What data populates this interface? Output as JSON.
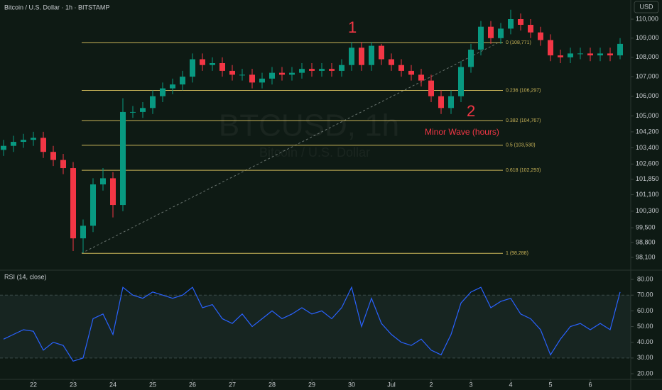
{
  "chart_data": [
    {
      "type": "candlestick",
      "header": "Bitcoin / U.S. Dollar · 1h · BITSTAMP",
      "watermark": "BTCUSD, 1h",
      "watermark_sub": "Bitcoin / U.S. Dollar",
      "currency": "USD",
      "up_color": "#089981",
      "down_color": "#f23645",
      "log_scale": true,
      "open": [
        103300,
        103500,
        103700,
        103800,
        103900,
        103200,
        102800,
        102400,
        99000,
        99600,
        101600,
        101900,
        100600,
        105200,
        105200,
        105400,
        106000,
        106400,
        106600,
        107000,
        107900,
        107600,
        107700,
        107300,
        107100,
        107100,
        106700,
        106900,
        107200,
        107100,
        107200,
        107400,
        107300,
        107400,
        107300,
        107600,
        108500,
        107600,
        108600,
        107900,
        107600,
        107300,
        107100,
        106800,
        106000,
        105400,
        106000,
        107500,
        108400,
        109600,
        109000,
        109500,
        110000,
        109700,
        109300,
        108900,
        108100,
        108000,
        108200,
        108200,
        108100,
        108200,
        108100
      ],
      "high": [
        103800,
        104000,
        104100,
        104200,
        104200,
        103500,
        103100,
        102700,
        99900,
        101900,
        102400,
        102200,
        105900,
        105500,
        105700,
        106300,
        106700,
        106900,
        107300,
        108200,
        108200,
        108000,
        108000,
        107600,
        107400,
        107400,
        107200,
        107500,
        107500,
        107500,
        107700,
        107700,
        107700,
        107700,
        107900,
        108800,
        108800,
        108800,
        108700,
        108200,
        107900,
        107600,
        107400,
        107100,
        106300,
        106300,
        107800,
        108700,
        109900,
        109900,
        109800,
        110500,
        110300,
        110000,
        109600,
        109200,
        108400,
        108500,
        108500,
        108500,
        108500,
        108500,
        109000
      ],
      "low": [
        103000,
        103200,
        103400,
        103500,
        102900,
        102500,
        102100,
        98400,
        98300,
        99300,
        101300,
        100000,
        100300,
        104900,
        104900,
        105100,
        105700,
        106100,
        106300,
        106700,
        107300,
        107300,
        107000,
        106800,
        106800,
        106400,
        106400,
        106600,
        106800,
        106800,
        106900,
        107000,
        107000,
        107000,
        107000,
        107300,
        107300,
        107300,
        107600,
        107300,
        107000,
        106800,
        106500,
        105700,
        105100,
        105100,
        105700,
        107200,
        108100,
        108700,
        108700,
        109200,
        109400,
        109000,
        108600,
        107800,
        107700,
        107700,
        107900,
        107800,
        107800,
        107800,
        107900
      ],
      "close": [
        103500,
        103700,
        103800,
        103900,
        103200,
        102800,
        102400,
        99000,
        99600,
        101600,
        101900,
        100600,
        105200,
        105200,
        105400,
        106000,
        106400,
        106600,
        107000,
        107900,
        107600,
        107700,
        107300,
        107100,
        107100,
        106700,
        106900,
        107200,
        107100,
        107200,
        107400,
        107300,
        107400,
        107300,
        107600,
        108500,
        107600,
        108600,
        107900,
        107600,
        107300,
        107100,
        106800,
        106000,
        105400,
        106000,
        107500,
        108400,
        109600,
        109000,
        109500,
        110000,
        109700,
        109300,
        108900,
        108100,
        108000,
        108200,
        108200,
        108100,
        108200,
        108100,
        108700
      ],
      "ylim": [
        97530,
        111017
      ],
      "yticks": [
        {
          "value": 110000,
          "label": "110,000"
        },
        {
          "value": 109000,
          "label": "109,000"
        },
        {
          "value": 108000,
          "label": "108,000"
        },
        {
          "value": 107000,
          "label": "107,000"
        },
        {
          "value": 106000,
          "label": "106,000"
        },
        {
          "value": 105000,
          "label": "105,000"
        },
        {
          "value": 104200,
          "label": "104,200"
        },
        {
          "value": 103400,
          "label": "103,400"
        },
        {
          "value": 102600,
          "label": "102,600"
        },
        {
          "value": 101850,
          "label": "101,850"
        },
        {
          "value": 101100,
          "label": "101,100"
        },
        {
          "value": 100300,
          "label": "100,300"
        },
        {
          "value": 99500,
          "label": "99,500"
        },
        {
          "value": 98800,
          "label": "98,800"
        },
        {
          "value": 98100,
          "label": "98,100"
        }
      ],
      "fib": {
        "prices": [
          108771,
          106297,
          104767,
          103530,
          102293,
          98288
        ],
        "labels": [
          "0 (108,771)",
          "0.236 (106,297)",
          "0.382 (104,767)",
          "0.5 (103,530)",
          "0.618 (102,293)",
          "1 (98,288)"
        ],
        "color": "#c9b458"
      },
      "annotations": [
        "1",
        "2",
        "Minor Wave (hours)"
      ],
      "annotation_color": "#f23645"
    },
    {
      "type": "line",
      "title": "RSI (14, close)",
      "color": "#2962ff",
      "values": [
        42,
        45,
        48,
        47,
        35,
        40,
        38,
        28,
        30,
        55,
        58,
        45,
        75,
        70,
        68,
        72,
        70,
        68,
        70,
        75,
        62,
        64,
        55,
        52,
        58,
        50,
        55,
        60,
        55,
        58,
        62,
        58,
        60,
        55,
        62,
        75,
        50,
        68,
        52,
        45,
        40,
        38,
        42,
        35,
        32,
        45,
        65,
        72,
        75,
        62,
        66,
        68,
        58,
        55,
        48,
        32,
        42,
        50,
        52,
        48,
        52,
        48,
        72
      ],
      "ylim": [
        16.4,
        85
      ],
      "band": [
        30,
        70
      ],
      "yticks": [
        {
          "value": 80,
          "label": "80.00"
        },
        {
          "value": 70,
          "label": "70.00"
        },
        {
          "value": 60,
          "label": "60.00"
        },
        {
          "value": 50,
          "label": "50.00"
        },
        {
          "value": 40,
          "label": "40.00"
        },
        {
          "value": 30,
          "label": "30.00"
        },
        {
          "value": 20,
          "label": "20.00"
        }
      ],
      "xticks": [
        {
          "value": 3,
          "label": "22"
        },
        {
          "value": 7,
          "label": "23"
        },
        {
          "value": 11,
          "label": "24"
        },
        {
          "value": 15,
          "label": "25"
        },
        {
          "value": 19,
          "label": "26"
        },
        {
          "value": 23,
          "label": "27"
        },
        {
          "value": 27,
          "label": "28"
        },
        {
          "value": 31,
          "label": "29"
        },
        {
          "value": 35,
          "label": "30"
        },
        {
          "value": 39,
          "label": "Jul"
        },
        {
          "value": 43,
          "label": "2"
        },
        {
          "value": 47,
          "label": "3"
        },
        {
          "value": 51,
          "label": "4"
        },
        {
          "value": 55,
          "label": "5"
        },
        {
          "value": 59,
          "label": "6"
        }
      ]
    }
  ]
}
